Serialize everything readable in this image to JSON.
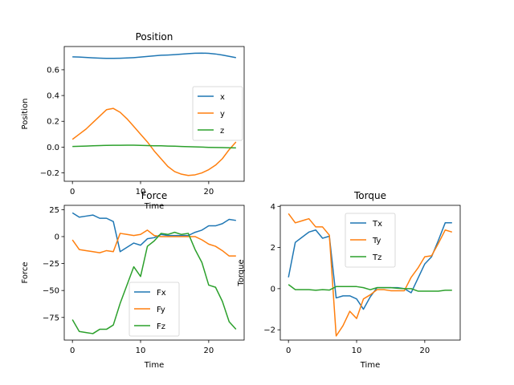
{
  "chart_data": [
    {
      "type": "line",
      "title": "Position",
      "xlabel": "Time",
      "ylabel": "Position",
      "xlim": [
        -1.2,
        25.2
      ],
      "ylim": [
        -0.265,
        0.78
      ],
      "xticks": [
        "0",
        "10",
        "20"
      ],
      "yticks": [
        "−0.2",
        "0.0",
        "0.2",
        "0.4",
        "0.6"
      ],
      "legend_position": "center-right",
      "x": [
        0,
        1,
        2,
        3,
        4,
        5,
        6,
        7,
        8,
        9,
        10,
        11,
        12,
        13,
        14,
        15,
        16,
        17,
        18,
        19,
        20,
        21,
        22,
        23,
        24
      ],
      "series": [
        {
          "name": "x",
          "color": "#1f77b4",
          "values": [
            0.7,
            0.698,
            0.695,
            0.692,
            0.69,
            0.688,
            0.688,
            0.689,
            0.691,
            0.694,
            0.698,
            0.703,
            0.708,
            0.712,
            0.714,
            0.717,
            0.721,
            0.725,
            0.728,
            0.729,
            0.727,
            0.722,
            0.714,
            0.704,
            0.694
          ]
        },
        {
          "name": "y",
          "color": "#ff7f0e",
          "values": [
            0.06,
            0.1,
            0.14,
            0.19,
            0.24,
            0.29,
            0.3,
            0.27,
            0.22,
            0.16,
            0.1,
            0.04,
            -0.03,
            -0.09,
            -0.15,
            -0.19,
            -0.21,
            -0.22,
            -0.215,
            -0.2,
            -0.175,
            -0.14,
            -0.09,
            -0.02,
            0.04
          ]
        },
        {
          "name": "z",
          "color": "#2ca02c",
          "values": [
            0.005,
            0.006,
            0.008,
            0.01,
            0.012,
            0.013,
            0.014,
            0.014,
            0.015,
            0.015,
            0.013,
            0.012,
            0.01,
            0.01,
            0.008,
            0.007,
            0.005,
            0.003,
            0.002,
            0.0,
            -0.002,
            -0.003,
            -0.004,
            -0.005,
            -0.006
          ]
        }
      ]
    },
    {
      "type": "line",
      "title": "Force",
      "xlabel": "Time",
      "ylabel": "Force",
      "xlim": [
        -1.2,
        25.2
      ],
      "ylim": [
        -96,
        29
      ],
      "xticks": [
        "0",
        "10",
        "20"
      ],
      "yticks": [
        "−75",
        "−50",
        "−25",
        "0",
        "25"
      ],
      "legend_position": "lower-center",
      "x": [
        0,
        1,
        2,
        3,
        4,
        5,
        6,
        7,
        8,
        9,
        10,
        11,
        12,
        13,
        14,
        15,
        16,
        17,
        18,
        19,
        20,
        21,
        22,
        23,
        24
      ],
      "series": [
        {
          "name": "Fx",
          "color": "#1f77b4",
          "values": [
            22,
            18,
            19,
            20,
            17,
            17,
            14,
            -14,
            -10,
            -6,
            -8,
            -2,
            -1,
            2,
            1,
            1,
            1,
            1,
            4,
            6,
            10,
            10,
            12,
            16,
            15
          ]
        },
        {
          "name": "Fy",
          "color": "#ff7f0e",
          "values": [
            -3,
            -12,
            -13,
            -14,
            -15,
            -13,
            -14,
            3,
            2,
            1,
            2,
            6,
            1,
            0,
            0,
            0,
            0,
            0,
            0,
            -3,
            -7,
            -9,
            -13,
            -18,
            -18
          ]
        },
        {
          "name": "Fz",
          "color": "#2ca02c",
          "values": [
            -77,
            -88,
            -89,
            -90,
            -86,
            -86,
            -82,
            -62,
            -45,
            -28,
            -37,
            -9,
            -4,
            3,
            2,
            4,
            2,
            3,
            -12,
            -24,
            -45,
            -47,
            -60,
            -79,
            -86
          ]
        }
      ]
    },
    {
      "type": "line",
      "title": "Torque",
      "xlabel": "Time",
      "ylabel": "Torque",
      "xlim": [
        -1.2,
        25.2
      ],
      "ylim": [
        -2.5,
        4.05
      ],
      "xticks": [
        "0",
        "10",
        "20"
      ],
      "yticks": [
        "−2",
        "0",
        "2",
        "4"
      ],
      "legend_position": "upper-center",
      "x": [
        0,
        1,
        2,
        3,
        4,
        5,
        6,
        7,
        8,
        9,
        10,
        11,
        12,
        13,
        14,
        15,
        16,
        17,
        18,
        19,
        20,
        21,
        22,
        23,
        24
      ],
      "series": [
        {
          "name": "Tx",
          "color": "#1f77b4",
          "values": [
            0.55,
            2.25,
            2.5,
            2.75,
            2.85,
            2.45,
            2.55,
            -0.45,
            -0.35,
            -0.35,
            -0.5,
            -1.0,
            -0.4,
            0.05,
            0.05,
            0.05,
            0.05,
            0.0,
            -0.2,
            0.5,
            1.2,
            1.55,
            2.35,
            3.2,
            3.2
          ]
        },
        {
          "name": "Ty",
          "color": "#ff7f0e",
          "values": [
            3.65,
            3.2,
            3.3,
            3.4,
            3.0,
            3.0,
            2.6,
            -2.3,
            -1.8,
            -1.1,
            -1.45,
            -0.5,
            -0.3,
            -0.05,
            -0.05,
            -0.1,
            -0.1,
            -0.1,
            0.55,
            1.0,
            1.55,
            1.6,
            2.2,
            2.85,
            2.75
          ]
        },
        {
          "name": "Tz",
          "color": "#2ca02c",
          "values": [
            0.2,
            -0.05,
            -0.05,
            -0.05,
            -0.08,
            -0.05,
            -0.07,
            0.1,
            0.1,
            0.1,
            0.1,
            0.05,
            -0.05,
            0.05,
            0.05,
            0.05,
            0.02,
            0.0,
            0.0,
            -0.12,
            -0.12,
            -0.12,
            -0.12,
            -0.08,
            -0.08
          ]
        }
      ]
    }
  ]
}
